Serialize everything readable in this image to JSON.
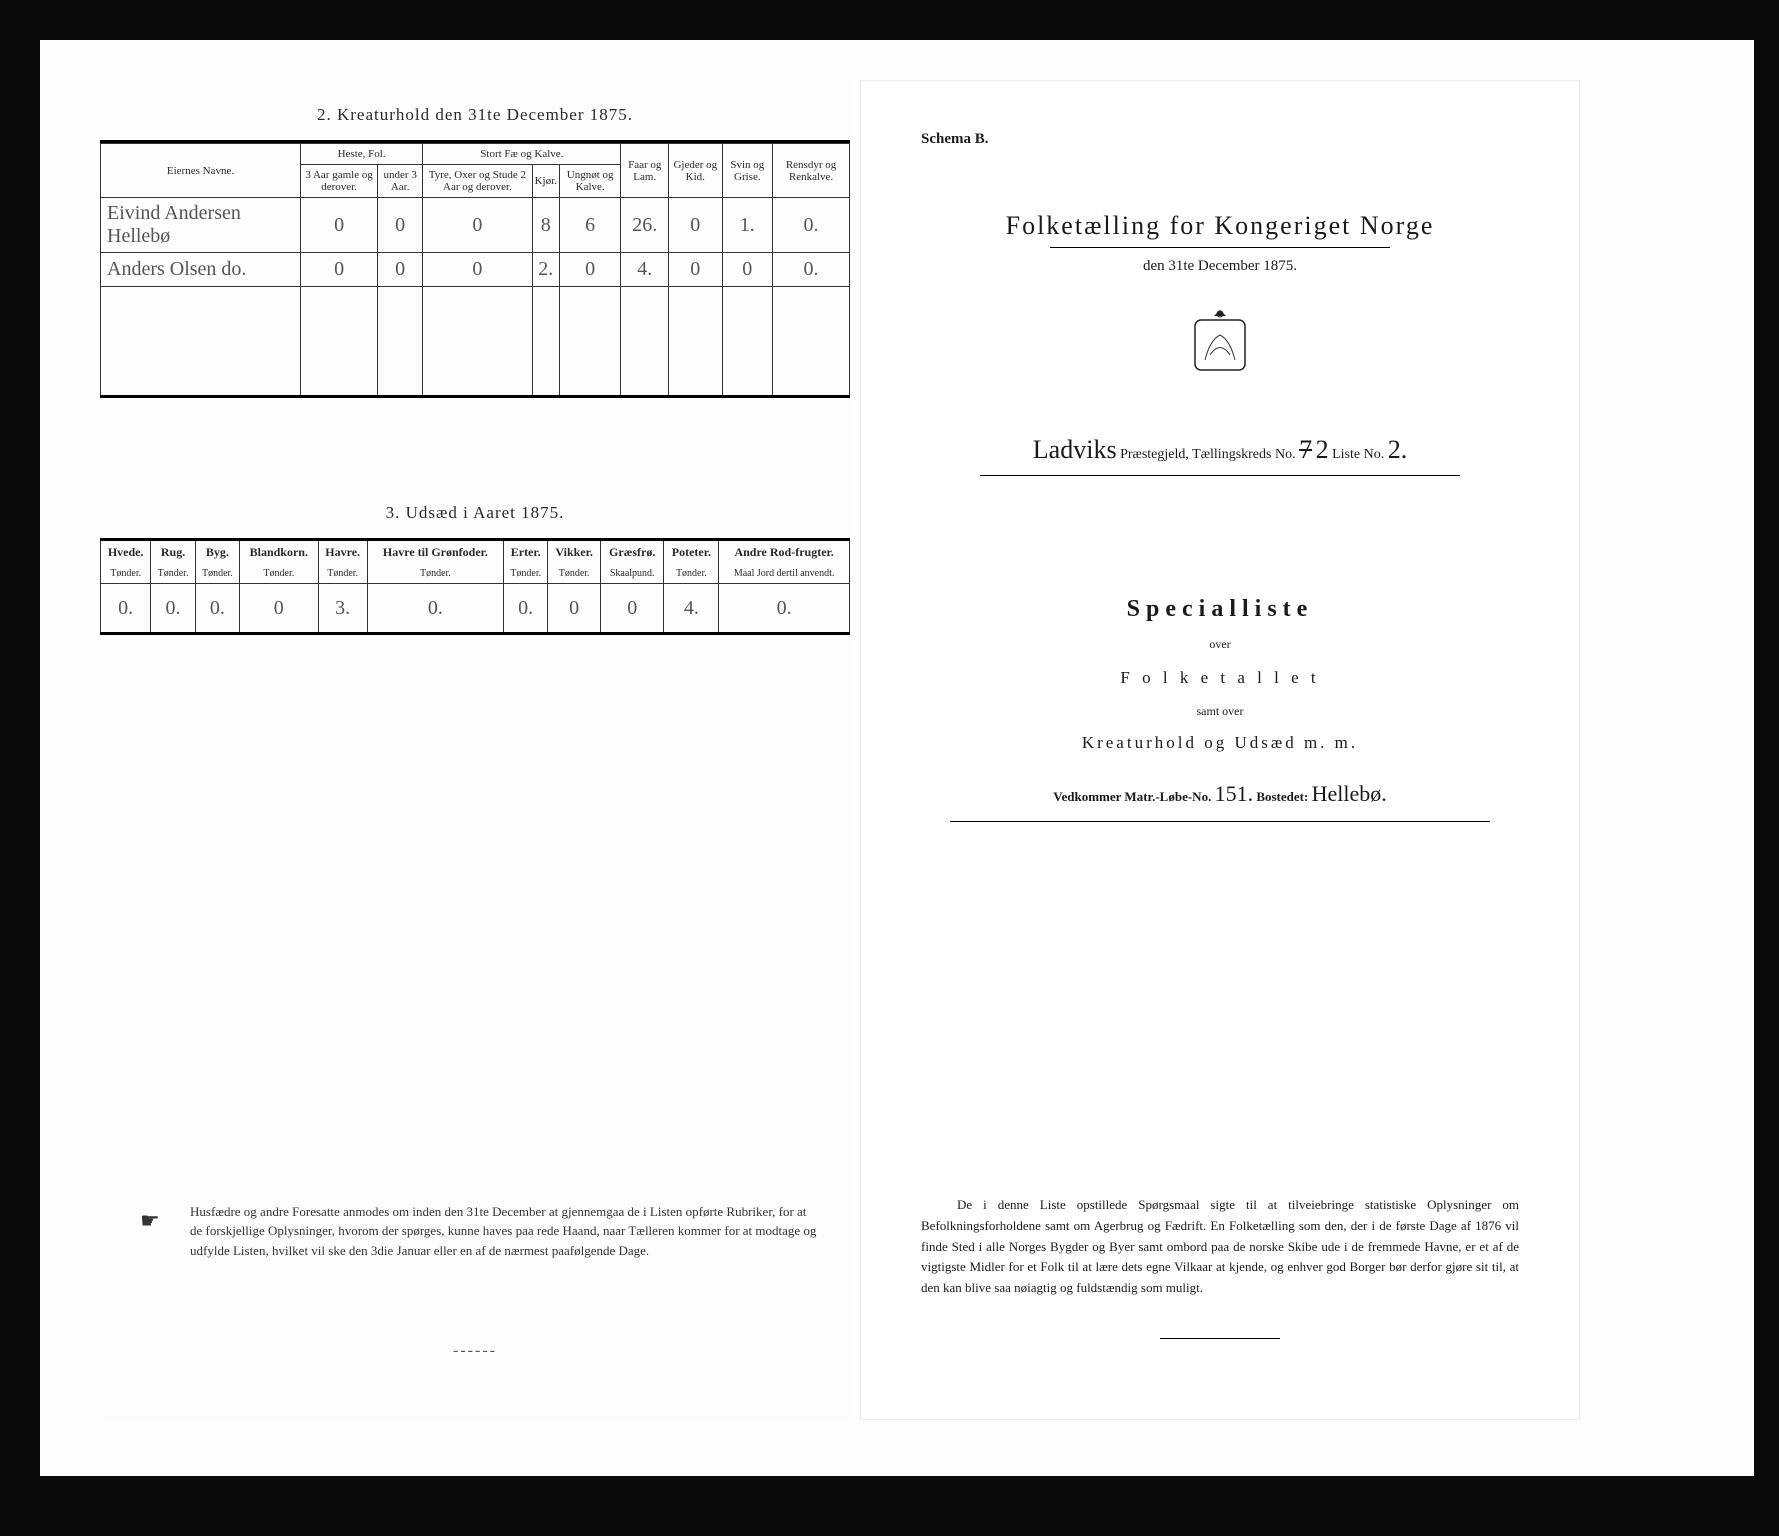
{
  "left": {
    "section2": {
      "title": "2.  Kreaturhold den 31te December 1875.",
      "head_names": "Eiernes Navne.",
      "head_group_horses": "Heste, Fol.",
      "head_group_cattle": "Stort Fæ og Kalve.",
      "head_sheep": "Faar og Lam.",
      "head_goats": "Gjeder og Kid.",
      "head_pigs": "Svin og Grise.",
      "head_reindeer": "Rensdyr og Renkalve.",
      "sub_h1": "3 Aar gamle og derover.",
      "sub_h2": "under 3 Aar.",
      "sub_c1": "Tyre, Oxer og Stude 2 Aar og derover.",
      "sub_c2": "Kjør.",
      "sub_c3": "Ungnøt og Kalve.",
      "rows": [
        {
          "name": "Eivind Andersen Hellebø",
          "v": [
            "0",
            "0",
            "0",
            "8",
            "6",
            "26.",
            "0",
            "1.",
            "0."
          ]
        },
        {
          "name": "Anders Olsen   do.",
          "v": [
            "0",
            "0",
            "0",
            "2.",
            "0",
            "4.",
            "0",
            "0",
            "0."
          ]
        }
      ]
    },
    "section3": {
      "title": "3.  Udsæd i Aaret 1875.",
      "cols": [
        "Hvede.",
        "Rug.",
        "Byg.",
        "Blandkorn.",
        "Havre.",
        "Havre til Grønfoder.",
        "Erter.",
        "Vikker.",
        "Græsfrø.",
        "Poteter.",
        "Andre Rod-frugter."
      ],
      "units": [
        "Tønder.",
        "Tønder.",
        "Tønder.",
        "Tønder.",
        "Tønder.",
        "Tønder.",
        "Tønder.",
        "Tønder.",
        "Skaalpund.",
        "Tønder.",
        "Maal Jord dertil anvendt."
      ],
      "row": [
        "0.",
        "0.",
        "0.",
        "0",
        "3.",
        "0.",
        "0.",
        "0",
        "0",
        "4.",
        "0."
      ]
    },
    "footnote": "Husfædre og andre Foresatte anmodes om inden den 31te December at gjennemgaa de i Listen opførte Rubriker, for at de forskjellige Oplysninger, hvorom der spørges, kunne haves paa rede Haand, naar Tælleren kommer for at modtage og udfylde Listen, hvilket vil ske den 3die Januar eller en af de nærmest paafølgende Dage.",
    "dashes": "------"
  },
  "right": {
    "schema": "Schema B.",
    "title": "Folketælling for Kongeriget Norge",
    "date": "den 31te December 1875.",
    "parish_hand": "Ladviks",
    "parish_label": " Præstegjeld,  Tællingskreds No. ",
    "kreds_no_strike": "7",
    "kreds_no": "2",
    "liste_label": "     Liste No. ",
    "liste_no": "2.",
    "special": "Specialliste",
    "over": "over",
    "folketallet": "F o l k e t a l l e t",
    "samt": "samt over",
    "kreatur": "Kreaturhold  og  Udsæd  m. m.",
    "matr_label1": "Vedkommer Matr.-Løbe-No. ",
    "matr_no": "151.",
    "bosted_label": "     Bostedet: ",
    "bosted": "Hellebø.",
    "bottom": "De i denne Liste opstillede Spørgsmaal sigte til at tilveiebringe statistiske Oplysninger om Befolkningsforholdene samt om Agerbrug og Fædrift.   En Folketælling som den, der i de første Dage af 1876 vil finde Sted i alle Norges Bygder og Byer samt ombord paa de norske Skibe ude i de fremmede Havne, er et af de vigtigste Midler for et Folk til at lære dets egne Vilkaar at kjende, og enhver god Borger bør derfor gjøre sit til, at den kan blive saa nøiagtig og fuldstændig som muligt."
  }
}
